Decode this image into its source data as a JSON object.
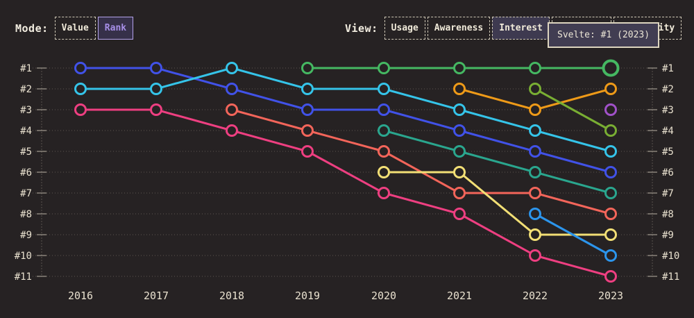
{
  "controls": {
    "mode": {
      "label": "Mode:",
      "options": [
        {
          "label": "Value",
          "selected": false
        },
        {
          "label": "Rank",
          "selected": true
        }
      ]
    },
    "view": {
      "label": "View:",
      "options": [
        {
          "label": "Usage",
          "selected": false
        },
        {
          "label": "Awareness",
          "selected": false
        },
        {
          "label": "Interest",
          "selected": true
        },
        {
          "label": "",
          "selected": false,
          "obscured_by_tooltip": true
        },
        {
          "label": "Positivity",
          "selected": false,
          "partially_obscured_by_tooltip": true
        }
      ]
    }
  },
  "tooltip": {
    "text": "Svelte: #1 (2023)"
  },
  "colors": {
    "background": "#262223",
    "cream_text": "#ece4d2",
    "selected_purple": "#a78fe8",
    "grid": "#8a847a"
  },
  "chart_data": {
    "type": "line",
    "subtype": "bump-rank-chart",
    "x": [
      2016,
      2017,
      2018,
      2019,
      2020,
      2021,
      2022,
      2023
    ],
    "y_axis": {
      "labels": [
        "#1",
        "#2",
        "#3",
        "#4",
        "#5",
        "#6",
        "#7",
        "#8",
        "#9",
        "#10",
        "#11"
      ],
      "best": 1,
      "worst": 11,
      "shown_on_both_sides": true
    },
    "grid": "dotted-horizontal",
    "series": [
      {
        "name": "blue",
        "color": "#4152e8",
        "ranks": [
          1,
          1,
          2,
          3,
          3,
          4,
          5,
          6
        ]
      },
      {
        "name": "cyan",
        "color": "#35c4e9",
        "ranks": [
          2,
          2,
          1,
          2,
          2,
          3,
          4,
          5
        ]
      },
      {
        "name": "pink",
        "color": "#ee3f81",
        "ranks": [
          3,
          3,
          4,
          5,
          7,
          8,
          10,
          11
        ]
      },
      {
        "name": "salmon",
        "color": "#f3655a",
        "ranks": [
          null,
          null,
          3,
          4,
          5,
          7,
          7,
          8
        ]
      },
      {
        "name": "teal",
        "color": "#2aa68e",
        "ranks": [
          null,
          null,
          null,
          null,
          4,
          5,
          6,
          7
        ]
      },
      {
        "name": "yellow",
        "color": "#f2df75",
        "ranks": [
          null,
          null,
          null,
          null,
          6,
          6,
          9,
          9
        ]
      },
      {
        "name": "orange",
        "color": "#ee9a18",
        "ranks": [
          null,
          null,
          null,
          null,
          null,
          2,
          3,
          2
        ]
      },
      {
        "name": "olive",
        "color": "#79ae33",
        "ranks": [
          null,
          null,
          null,
          null,
          null,
          null,
          2,
          4
        ]
      },
      {
        "name": "lightblue",
        "color": "#2c95ec",
        "ranks": [
          null,
          null,
          null,
          null,
          null,
          null,
          8,
          10
        ]
      },
      {
        "name": "purple",
        "color": "#a151c9",
        "ranks": [
          null,
          null,
          null,
          null,
          null,
          null,
          null,
          3
        ]
      },
      {
        "name": "Svelte",
        "color": "#45b862",
        "ranks": [
          null,
          null,
          null,
          1,
          1,
          1,
          1,
          1
        ],
        "highlight_last": true
      }
    ]
  }
}
